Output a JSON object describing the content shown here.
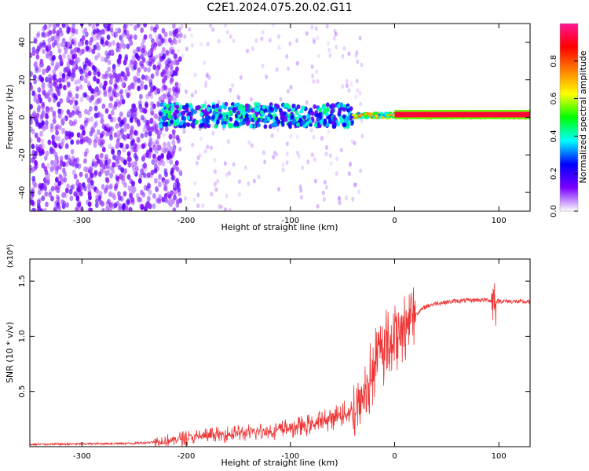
{
  "title": "C2E1.2024.075.20.02.G11",
  "chart_data": [
    {
      "type": "heatmap",
      "xlabel": "Height of straight line (km)",
      "ylabel": "Frequency (Hz)",
      "xlim": [
        -350,
        130
      ],
      "ylim": [
        -50,
        50
      ],
      "xticks": [
        -300,
        -200,
        -100,
        0,
        100
      ],
      "yticks": [
        -40,
        -20,
        0,
        20,
        40
      ],
      "colorbar": {
        "label": "Normalized spectral amplitude",
        "range": [
          0.0,
          1.0
        ],
        "ticks": [
          "0.0",
          "0.2",
          "0.4",
          "0.6",
          "0.8"
        ],
        "colormap": [
          "#ffffff",
          "#7a00ff",
          "#0000ff",
          "#00ffff",
          "#00ff00",
          "#ffff00",
          "#ff7f00",
          "#ff0000",
          "#ff1493"
        ]
      },
      "features": {
        "noise_region_x": [
          -350,
          -230
        ],
        "signal_band_x": [
          -225,
          130
        ],
        "signal_band_center_hz": 1,
        "signal_band_halfwidth_hz": [
          6,
          1.5
        ]
      }
    },
    {
      "type": "line",
      "xlabel": "Height of straight line (km)",
      "ylabel": "SNR (10 * v/v)",
      "multiplier": "(x10⁴)",
      "xlim": [
        -350,
        130
      ],
      "ylim": [
        0,
        1.7
      ],
      "xticks": [
        -300,
        -200,
        -100,
        0,
        100
      ],
      "yticks": [
        "0.5",
        "1.0",
        "1.5"
      ],
      "series": [
        {
          "color": "#ee3333",
          "x": [
            -350,
            -300,
            -250,
            -220,
            -200,
            -180,
            -150,
            -120,
            -100,
            -80,
            -60,
            -40,
            -30,
            -20,
            -15,
            -10,
            -5,
            0,
            5,
            10,
            15,
            20,
            30,
            40,
            60,
            80,
            90,
            95,
            100,
            130
          ],
          "values": [
            0.02,
            0.025,
            0.03,
            0.05,
            0.08,
            0.1,
            0.12,
            0.14,
            0.17,
            0.2,
            0.26,
            0.32,
            0.45,
            0.7,
            0.85,
            0.9,
            0.95,
            1.0,
            1.05,
            1.1,
            1.15,
            1.2,
            1.27,
            1.3,
            1.32,
            1.33,
            1.33,
            1.31,
            1.32,
            1.31
          ]
        }
      ]
    }
  ]
}
